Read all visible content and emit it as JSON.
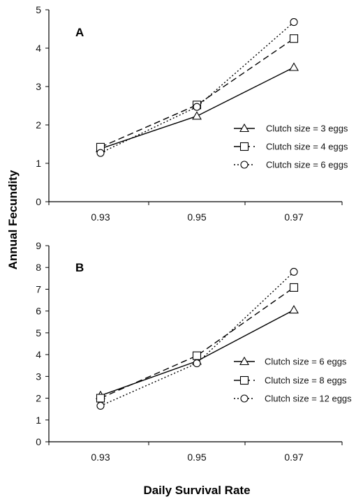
{
  "chart_data": [
    {
      "type": "line",
      "panel_label": "A",
      "xlabel": "Daily Survival Rate",
      "ylabel": "Annual Fecundity",
      "categories": [
        "0.93",
        "0.95",
        "0.97"
      ],
      "ylim": [
        0,
        5
      ],
      "yticks": [
        "0",
        "1",
        "2",
        "3",
        "4",
        "5"
      ],
      "grid": false,
      "legend_position": "right",
      "series": [
        {
          "name": "Clutch size = 3 eggs",
          "marker": "triangle",
          "dash": "solid",
          "values": [
            1.38,
            2.23,
            3.5
          ]
        },
        {
          "name": "Clutch size = 4 eggs",
          "marker": "square",
          "dash": "dashed",
          "values": [
            1.42,
            2.52,
            4.25
          ]
        },
        {
          "name": "Clutch size = 6 eggs",
          "marker": "circle",
          "dash": "dotted",
          "values": [
            1.27,
            2.47,
            4.68
          ]
        }
      ]
    },
    {
      "type": "line",
      "panel_label": "B",
      "xlabel": "Daily Survival Rate",
      "ylabel": "Annual Fecundity",
      "categories": [
        "0.93",
        "0.95",
        "0.97"
      ],
      "ylim": [
        0,
        9
      ],
      "yticks": [
        "0",
        "1",
        "2",
        "3",
        "4",
        "5",
        "6",
        "7",
        "8",
        "9"
      ],
      "grid": false,
      "legend_position": "right",
      "series": [
        {
          "name": "Clutch size = 6 eggs",
          "marker": "triangle",
          "dash": "solid",
          "values": [
            2.12,
            3.7,
            6.05
          ]
        },
        {
          "name": "Clutch size = 8 eggs",
          "marker": "square",
          "dash": "dashed",
          "values": [
            2.0,
            3.95,
            7.08
          ]
        },
        {
          "name": "Clutch size = 12 eggs",
          "marker": "circle",
          "dash": "dotted",
          "values": [
            1.65,
            3.6,
            7.8
          ]
        }
      ]
    }
  ],
  "figure": {
    "shared_xlabel": "Daily Survival Rate",
    "shared_ylabel": "Annual Fecundity"
  }
}
